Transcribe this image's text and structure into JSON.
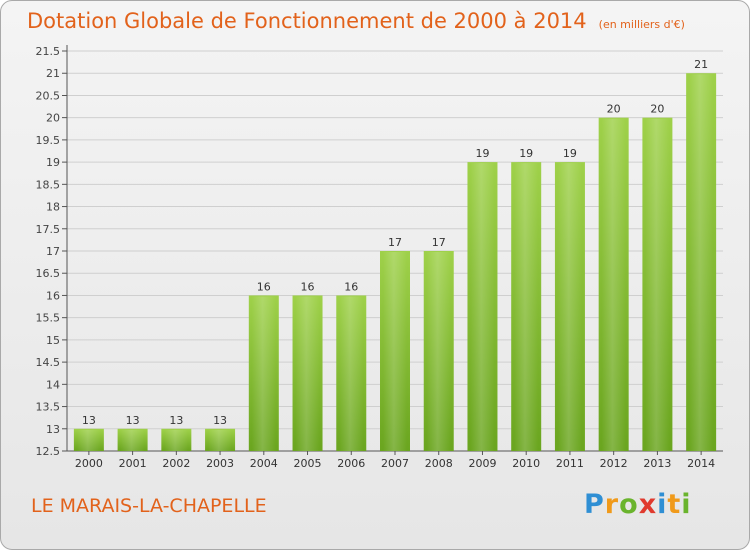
{
  "header": {
    "title": "Dotation Globale de Fonctionnement de 2000 à 2014",
    "subtitle": "(en milliers d'€)"
  },
  "footer": {
    "commune": "LE MARAIS-LA-CHAPELLE",
    "logo_letters": [
      "P",
      "r",
      "o",
      "x",
      "i",
      "t",
      "i"
    ]
  },
  "colors": {
    "title": "#e2621b",
    "bar_light": "#9fd14a",
    "bar_dark": "#6aa51f",
    "grid": "#cfcfcf"
  },
  "chart_data": {
    "type": "bar",
    "categories": [
      "2000",
      "2001",
      "2002",
      "2003",
      "2004",
      "2005",
      "2006",
      "2007",
      "2008",
      "2009",
      "2010",
      "2011",
      "2012",
      "2013",
      "2014"
    ],
    "values": [
      13,
      13,
      13,
      13,
      16,
      16,
      16,
      17,
      17,
      19,
      19,
      19,
      20,
      20,
      21
    ],
    "data_labels": [
      "13",
      "13",
      "13",
      "13",
      "16",
      "16",
      "16",
      "17",
      "17",
      "19",
      "19",
      "19",
      "20",
      "20",
      "21"
    ],
    "ylim": [
      12.5,
      21.5
    ],
    "yticks": [
      "12.5",
      "13",
      "13.5",
      "14",
      "14.5",
      "15",
      "15.5",
      "16",
      "16.5",
      "17",
      "17.5",
      "18",
      "18.5",
      "19",
      "19.5",
      "20",
      "20.5",
      "21",
      "21.5"
    ],
    "grid": true,
    "title": "Dotation Globale de Fonctionnement de 2000 à 2014",
    "xlabel": "",
    "ylabel": ""
  }
}
